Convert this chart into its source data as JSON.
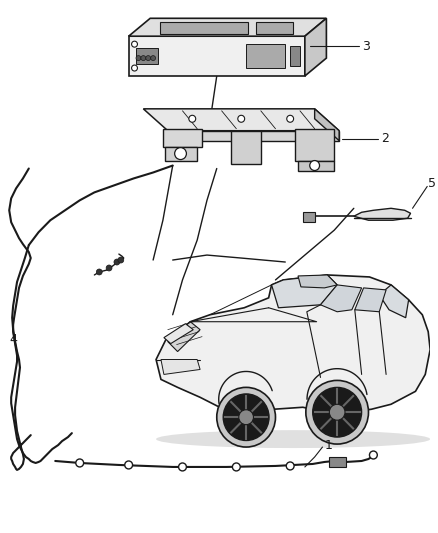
{
  "background_color": "#ffffff",
  "fig_width": 4.38,
  "fig_height": 5.33,
  "dpi": 100,
  "line_color": "#1a1a1a",
  "fill_color": "#f0f0f0",
  "dark_fill": "#c8c8c8",
  "mid_fill": "#e0e0e0"
}
